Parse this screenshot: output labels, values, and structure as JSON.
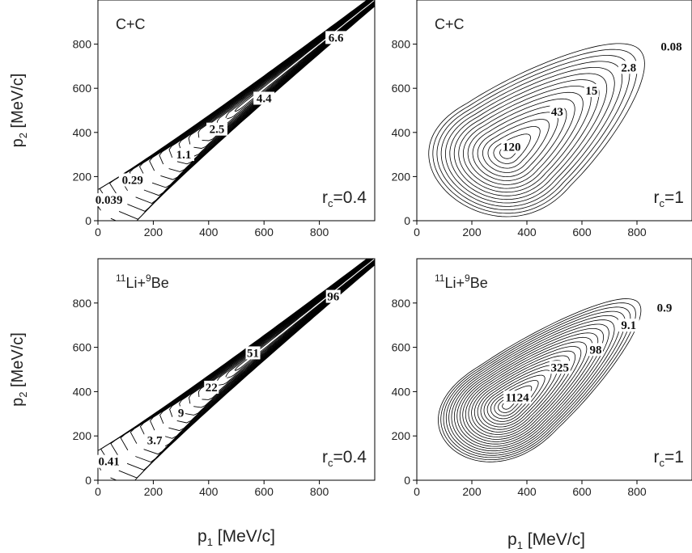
{
  "chart_data": [
    {
      "type": "contour",
      "system": "C+C",
      "rc_label": "0.4",
      "x": {
        "label": "",
        "range": [
          0,
          1000
        ],
        "ticks": [
          0,
          200,
          400,
          600,
          800
        ]
      },
      "y": {
        "label": "p2 [MeV/c]",
        "range": [
          0,
          1000
        ],
        "ticks": [
          0,
          200,
          400,
          600,
          800
        ]
      },
      "peak": {
        "p1": 1000,
        "p2": 1000
      },
      "contour_labels": [
        {
          "text": "0.039",
          "p1": 40,
          "p2": 95
        },
        {
          "text": "0.29",
          "p1": 125,
          "p2": 185
        },
        {
          "text": "1.1",
          "p1": 310,
          "p2": 300
        },
        {
          "text": "2.5",
          "p1": 430,
          "p2": 415
        },
        {
          "text": "4.4",
          "p1": 600,
          "p2": 555
        },
        {
          "text": "6.6",
          "p1": 860,
          "p2": 830
        }
      ]
    },
    {
      "type": "contour",
      "system": "C+C",
      "rc_label": "1",
      "x": {
        "label": "p1 [MeV/c]",
        "range": [
          0,
          1000
        ],
        "ticks": [
          0,
          200,
          400,
          600,
          800
        ]
      },
      "y": {
        "label": "",
        "range": [
          0,
          1000
        ],
        "ticks": [
          0,
          200,
          400,
          600,
          800
        ]
      },
      "peak": {
        "p1": 350,
        "p2": 330
      },
      "contour_labels": [
        {
          "text": "120",
          "p1": 345,
          "p2": 335
        },
        {
          "text": "43",
          "p1": 510,
          "p2": 495
        },
        {
          "text": "15",
          "p1": 635,
          "p2": 590
        },
        {
          "text": "2.8",
          "p1": 770,
          "p2": 695
        },
        {
          "text": "0.08",
          "p1": 925,
          "p2": 790
        }
      ]
    },
    {
      "type": "contour",
      "system": "11Li+9Be",
      "rc_label": "0.4",
      "x": {
        "label": "p1 [MeV/c]",
        "range": [
          0,
          1000
        ],
        "ticks": [
          0,
          200,
          400,
          600,
          800
        ]
      },
      "y": {
        "label": "p2 [MeV/c]",
        "range": [
          0,
          1000
        ],
        "ticks": [
          0,
          200,
          400,
          600,
          800
        ]
      },
      "peak": {
        "p1": 1000,
        "p2": 1000
      },
      "contour_labels": [
        {
          "text": "0.41",
          "p1": 40,
          "p2": 85
        },
        {
          "text": "3.7",
          "p1": 205,
          "p2": 180
        },
        {
          "text": "9",
          "p1": 300,
          "p2": 305
        },
        {
          "text": "22",
          "p1": 410,
          "p2": 420
        },
        {
          "text": "51",
          "p1": 560,
          "p2": 575
        },
        {
          "text": "96",
          "p1": 850,
          "p2": 830
        }
      ]
    },
    {
      "type": "contour",
      "system": "11Li+9Be",
      "rc_label": "1",
      "x": {
        "label": "p1 [MeV/c]",
        "range": [
          0,
          1000
        ],
        "ticks": [
          0,
          200,
          400,
          600,
          800
        ]
      },
      "y": {
        "label": "",
        "range": [
          0,
          1000
        ],
        "ticks": [
          0,
          200,
          400,
          600,
          800
        ]
      },
      "peak": {
        "p1": 350,
        "p2": 360
      },
      "contour_labels": [
        {
          "text": "1124",
          "p1": 365,
          "p2": 375
        },
        {
          "text": "325",
          "p1": 520,
          "p2": 510
        },
        {
          "text": "98",
          "p1": 650,
          "p2": 590
        },
        {
          "text": "9.1",
          "p1": 770,
          "p2": 700
        },
        {
          "text": "0.9",
          "p1": 900,
          "p2": 780
        }
      ]
    }
  ]
}
